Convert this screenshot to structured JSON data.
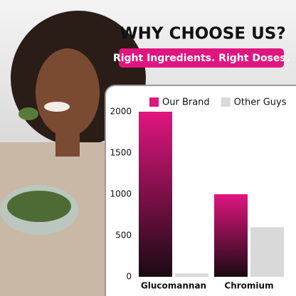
{
  "chart_data": {
    "type": "bar",
    "title": "WHY CHOOSE US?",
    "subtitle": "Right Ingredients. Right Doses.",
    "categories": [
      "Glucomannan",
      "Chromium"
    ],
    "series": [
      {
        "name": "Our Brand",
        "color": "#e0157f",
        "values": [
          2000,
          1000
        ]
      },
      {
        "name": "Other Guys",
        "color": "#d9d9d9",
        "values": [
          40,
          600
        ]
      }
    ],
    "ylim": [
      0,
      2000
    ],
    "yticks": [
      0,
      500,
      1000,
      1500,
      2000
    ],
    "grid": false
  }
}
